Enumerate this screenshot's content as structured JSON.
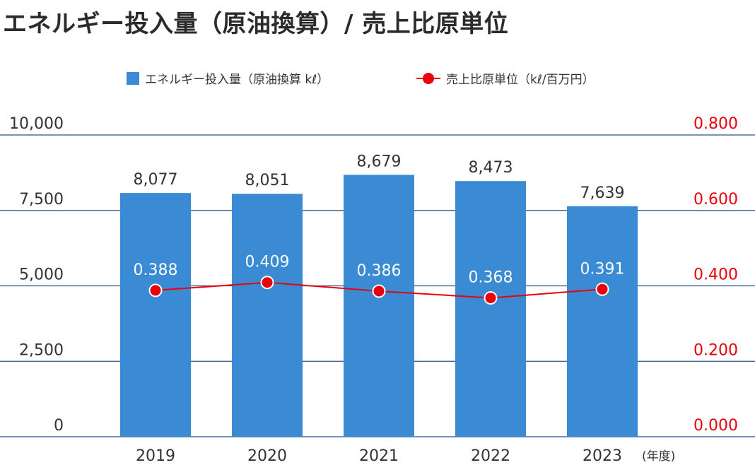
{
  "header": {
    "title": "エネルギー投入量（原油換算）/ 売上比原単位"
  },
  "legend": {
    "bar_label": "エネルギー投入量（原油換算 kℓ）",
    "line_label": "売上比原単位（kℓ/百万円）"
  },
  "chart_data": {
    "type": "bar",
    "title": "エネルギー投入量（原油換算）/ 売上比原単位",
    "categories": [
      "2019",
      "2020",
      "2021",
      "2022",
      "2023"
    ],
    "x_unit": "(年度)",
    "series": [
      {
        "name": "エネルギー投入量（原油換算 kℓ）",
        "type": "bar",
        "axis": "left",
        "values": [
          8077,
          8051,
          8679,
          8473,
          7639
        ],
        "labels": [
          "8,077",
          "8,051",
          "8,679",
          "8,473",
          "7,639"
        ],
        "color": "#3a8bd4"
      },
      {
        "name": "売上比原単位（kℓ/百万円）",
        "type": "line",
        "axis": "right",
        "values": [
          0.388,
          0.409,
          0.386,
          0.368,
          0.391
        ],
        "labels": [
          "0.388",
          "0.409",
          "0.386",
          "0.368",
          "0.391"
        ],
        "color": "#e8000b"
      }
    ],
    "y_left": {
      "ylim": [
        0,
        10000
      ],
      "ticks": [
        0,
        2500,
        5000,
        7500,
        10000
      ],
      "tick_labels": [
        "0",
        "2,500",
        "5,000",
        "7,500",
        "10,000"
      ]
    },
    "y_right": {
      "ylim": [
        0,
        0.8
      ],
      "ticks": [
        0,
        0.2,
        0.4,
        0.6,
        0.8
      ],
      "tick_labels": [
        "0.000",
        "0.200",
        "0.400",
        "0.600",
        "0.800"
      ],
      "color": "#e8000b"
    },
    "grid": true,
    "legend_position": "top-center"
  }
}
